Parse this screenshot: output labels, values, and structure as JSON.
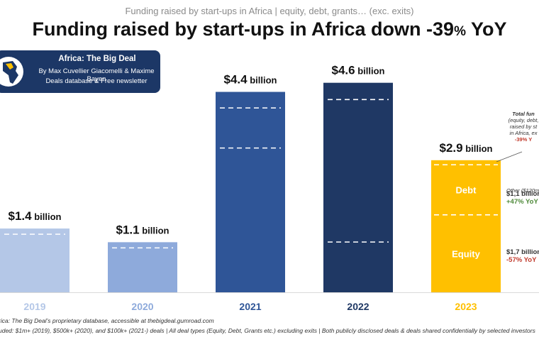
{
  "header": {
    "subtitle": "Funding raised by start-ups in Africa | equity, debt, grants… (exc. exits)",
    "title_main": "Funding raised by start-ups in Africa down -39",
    "title_pct": "%",
    "title_tail": " YoY"
  },
  "badge": {
    "title": "Africa: The Big Deal",
    "authors": "By Max Cuvellier Giacomelli & Maxime Bayen",
    "tagline": "Deals database & Free newsletter"
  },
  "chart_data": {
    "type": "bar",
    "categories": [
      "2019",
      "2020",
      "2021",
      "2022",
      "2023"
    ],
    "values": [
      1.4,
      1.1,
      4.4,
      4.6,
      2.9
    ],
    "value_unit": "billion",
    "bar_labels": [
      "$1.4",
      "$1.1",
      "$4.4",
      "$4.6",
      "$2.9"
    ],
    "colors": [
      "#b4c7e7",
      "#8eaadb",
      "#2f5597",
      "#1f3864",
      "#ffc000"
    ],
    "stack_2023": [
      {
        "name": "Equity",
        "value": 1.7
      },
      {
        "name": "Debt",
        "value": 1.1
      },
      {
        "name": "Other",
        "value": 0.12
      }
    ],
    "ylim": [
      0,
      4.8
    ]
  },
  "annotations": {
    "total_note_title": "Total fun",
    "total_note_lines": [
      "(equity, debt,",
      "raised by st",
      "in Africa, ex"
    ],
    "total_note_change": "-39% Y",
    "other_label": "Other ($120m)",
    "debt_value": "$1,1 billion",
    "debt_change": "+47% YoY",
    "equity_value": "$1,7 billion",
    "equity_change": "-57% YoY",
    "debt_label": "Debt",
    "equity_label": "Equity"
  },
  "footer": {
    "source": "rica: The Big Deal’s proprietary database, accessible at thebigdeal.gumroad.com",
    "included": "uded: $1m+ (2019), $500k+ (2020), and $100k+ (2021-) deals | All deal types (Equity, Debt, Grants etc.) excluding exits | Both publicly disclosed deals & deals shared confidentially by selected investors"
  }
}
